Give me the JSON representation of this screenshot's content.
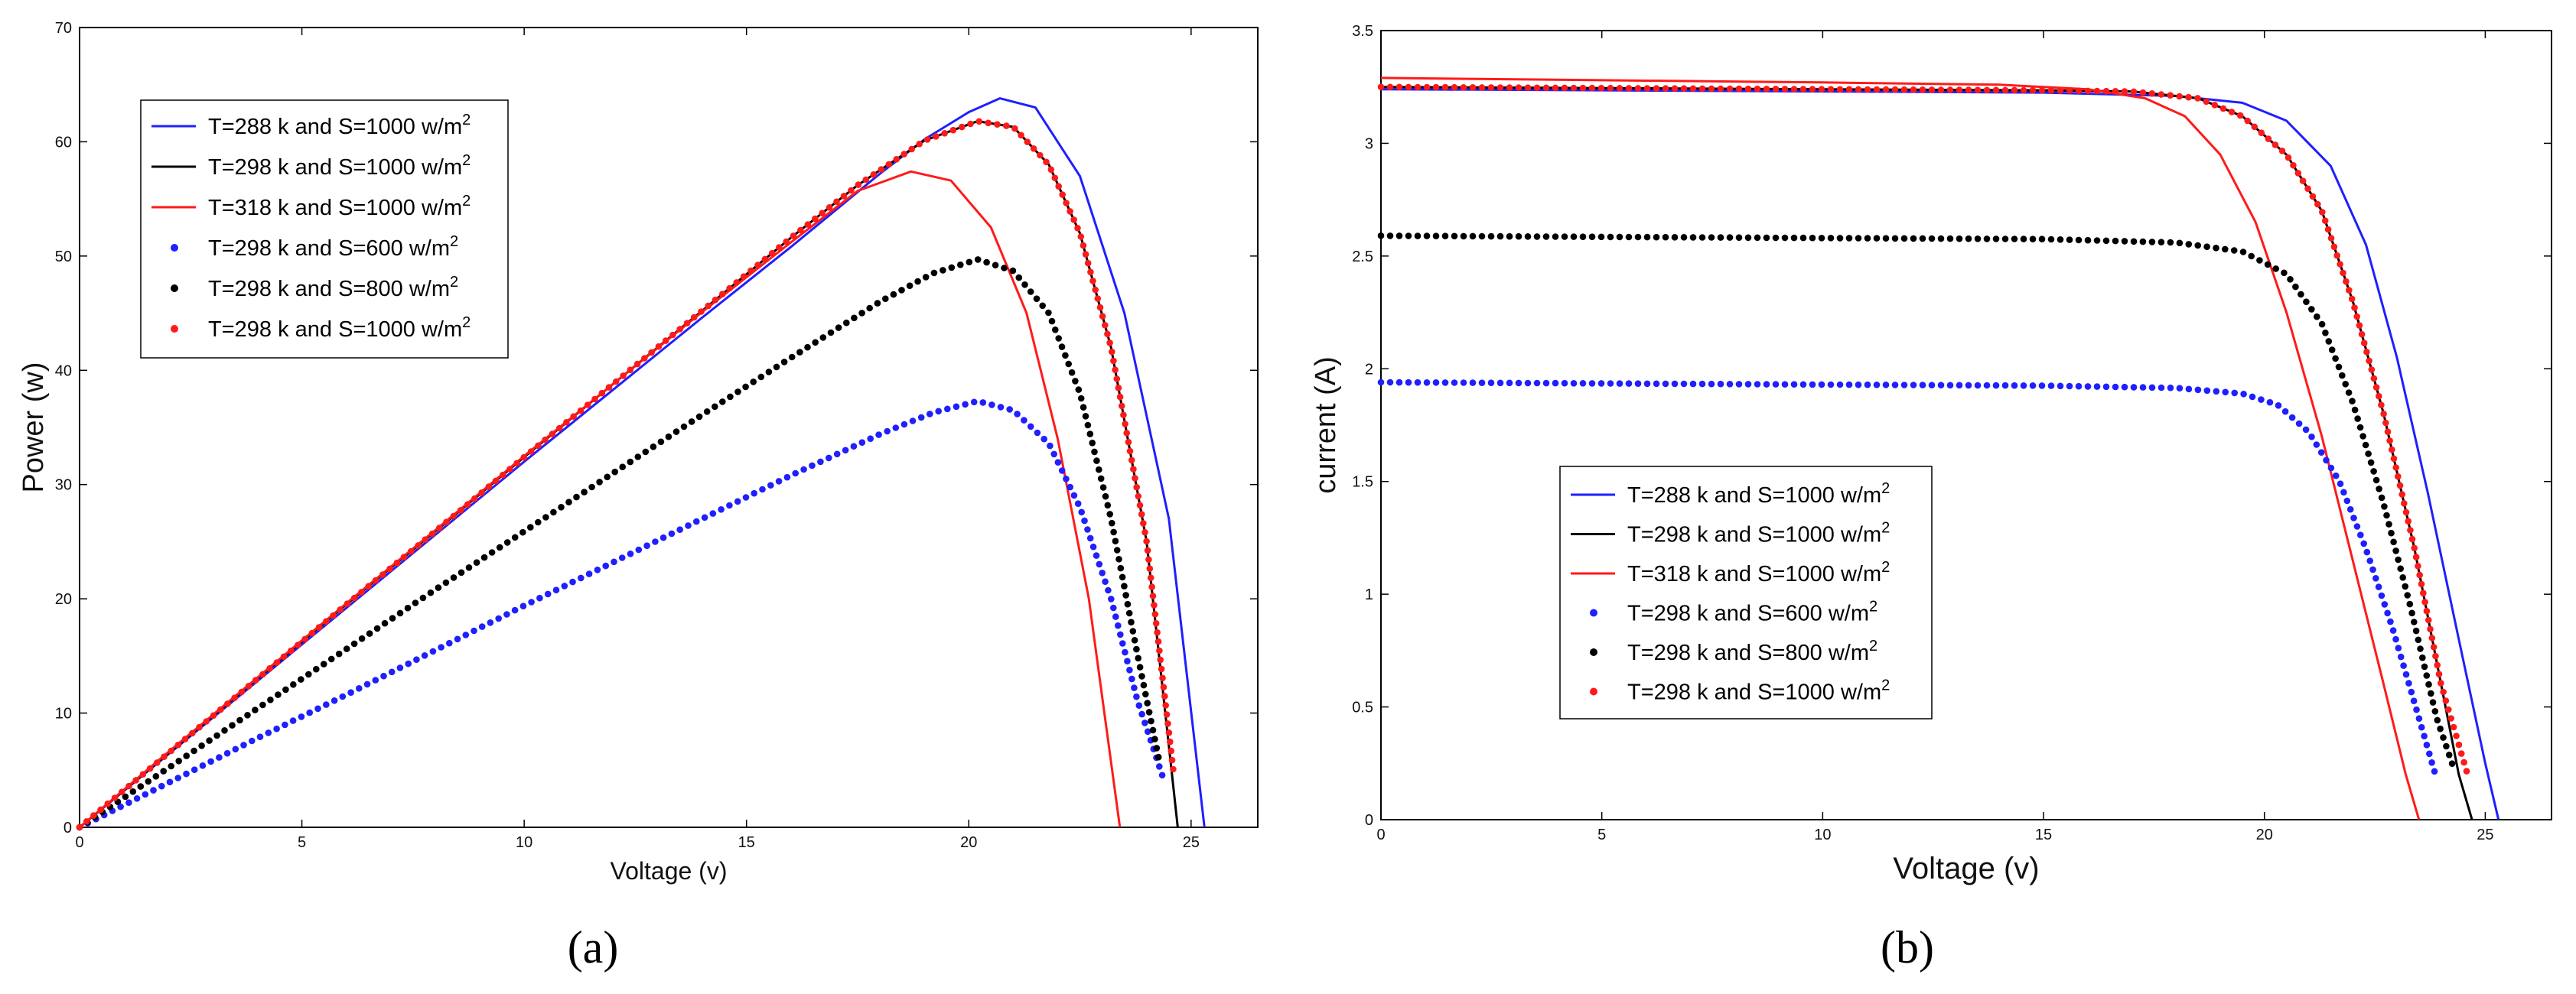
{
  "figure": {
    "panel_labels": [
      "(a)",
      "(b)"
    ]
  },
  "legend_entries": [
    {
      "text": "T=288 k and  S=1000 w/m",
      "sup": "2",
      "color": "#1f1fff",
      "style": "line"
    },
    {
      "text": "T=298 k and  S=1000 w/m",
      "sup": "2",
      "color": "#000000",
      "style": "line"
    },
    {
      "text": "T=318 k and  S=1000 w/m",
      "sup": "2",
      "color": "#ff1a1a",
      "style": "line"
    },
    {
      "text": "T=298 k and  S=600 w/m",
      "sup": "2",
      "color": "#1f1fff",
      "style": "dots"
    },
    {
      "text": "T=298 k and  S=800 w/m",
      "sup": "2",
      "color": "#000000",
      "style": "dots"
    },
    {
      "text": "T=298 k and  S=1000 w/m",
      "sup": "2",
      "color": "#ff1a1a",
      "style": "dots"
    }
  ],
  "legend_entries_b": [
    {
      "text": "T=288 k and S=1000 w/m",
      "sup": "2"
    },
    {
      "text": "T=298 k and S=1000 w/m",
      "sup": "2"
    },
    {
      "text": "T=318 k and S=1000 w/m",
      "sup": "2"
    },
    {
      "text": "T=298 k and S=600 w/m",
      "sup": "2"
    },
    {
      "text": "T=298 k and S=800 w/m",
      "sup": "2"
    },
    {
      "text": "T=298 k and S=1000 w/m",
      "sup": "2"
    }
  ],
  "chart_data": [
    {
      "type": "line",
      "title": "",
      "xlabel": "Voltage (v)",
      "ylabel": "Power (w)",
      "xlim": [
        0,
        26.5
      ],
      "ylim": [
        0,
        70
      ],
      "xticks": [
        0,
        5,
        10,
        15,
        20,
        25
      ],
      "yticks": [
        0,
        10,
        20,
        30,
        40,
        50,
        60,
        70
      ],
      "legend_position": "top-left",
      "series": [
        {
          "name": "T=288 k and S=1000 w/m2",
          "style": "line",
          "color": "#1f1fff",
          "x": [
            0,
            2,
            4,
            6,
            8,
            10,
            12,
            14,
            16,
            18,
            19,
            20,
            20.7,
            21.5,
            22.5,
            23.5,
            24.5,
            25.3
          ],
          "y": [
            0,
            6.4,
            12.8,
            19.2,
            25.6,
            32,
            38.3,
            44.6,
            50.8,
            57.2,
            60.2,
            62.6,
            63.8,
            63,
            57,
            45,
            27,
            0
          ]
        },
        {
          "name": "T=298 k and S=1000 w/m2",
          "style": "line",
          "color": "#000000",
          "x": [
            0,
            2,
            4,
            6,
            8,
            10,
            12,
            14,
            16,
            17.5,
            19,
            20.2,
            21,
            21.8,
            22.5,
            23.2,
            24,
            24.7
          ],
          "y": [
            0,
            6.5,
            13,
            19.5,
            25.9,
            32.4,
            38.8,
            45.2,
            51.6,
            56.2,
            60.1,
            61.8,
            61.3,
            58,
            52,
            42,
            25,
            0
          ]
        },
        {
          "name": "T=318 k and S=1000 w/m2",
          "style": "line",
          "color": "#ff1a1a",
          "x": [
            0,
            2,
            4,
            6,
            8,
            10,
            12,
            14,
            16,
            17.5,
            18.7,
            19.6,
            20.5,
            21.3,
            22,
            22.7,
            23.4
          ],
          "y": [
            0,
            6.6,
            13.1,
            19.6,
            26,
            32.5,
            38.8,
            45.1,
            51.2,
            55.7,
            57.4,
            56.6,
            52.5,
            45,
            34,
            20,
            0
          ]
        },
        {
          "name": "T=298 k and S=600 w/m2",
          "style": "dots",
          "color": "#1f1fff",
          "x": [
            0,
            2,
            4,
            6,
            8,
            10,
            12,
            14,
            16,
            18,
            19.2,
            20.2,
            21,
            21.8,
            22.5,
            23.2,
            23.8,
            24.4
          ],
          "y": [
            0,
            3.9,
            7.8,
            11.6,
            15.5,
            19.4,
            23.2,
            27,
            30.8,
            34.4,
            36.3,
            37.3,
            36.5,
            33.6,
            28,
            20,
            11,
            4
          ]
        },
        {
          "name": "T=298 k and S=800 w/m2",
          "style": "dots",
          "color": "#000000",
          "x": [
            0,
            2,
            4,
            6,
            8,
            10,
            12,
            14,
            16,
            18,
            19.2,
            20.2,
            21,
            21.8,
            22.5,
            23.2,
            23.8,
            24.3
          ],
          "y": [
            0,
            5.2,
            10.4,
            15.6,
            20.8,
            25.9,
            31,
            36.1,
            41.1,
            46,
            48.5,
            49.7,
            48.7,
            45,
            38,
            27,
            15,
            5.5
          ]
        },
        {
          "name": "T=298 k and S=1000 w/m2",
          "style": "dots",
          "color": "#ff1a1a",
          "x": [
            0,
            2,
            4,
            6,
            8,
            10,
            12,
            14,
            16,
            17.5,
            19,
            20.2,
            21,
            21.8,
            22.5,
            23.2,
            24,
            24.6
          ],
          "y": [
            0,
            6.5,
            13,
            19.5,
            25.9,
            32.4,
            38.8,
            45.2,
            51.6,
            56.2,
            60.1,
            61.8,
            61.3,
            58,
            52,
            42,
            25,
            5
          ]
        }
      ]
    },
    {
      "type": "line",
      "title": "",
      "xlabel": "Voltage (v)",
      "ylabel": "current (A)",
      "xlim": [
        0,
        26.5
      ],
      "ylim": [
        0,
        3.5
      ],
      "xticks": [
        0,
        5,
        10,
        15,
        20,
        25
      ],
      "yticks": [
        0,
        0.5,
        1,
        1.5,
        2,
        2.5,
        3,
        3.5
      ],
      "legend_position": "center-left",
      "series": [
        {
          "name": "T=288 k and S=1000 w/m2",
          "style": "line",
          "color": "#1f1fff",
          "x": [
            0,
            5,
            10,
            15,
            18,
            19.5,
            20.5,
            21.5,
            22.3,
            23,
            23.7,
            24.4,
            25,
            25.3
          ],
          "y": [
            3.24,
            3.235,
            3.23,
            3.225,
            3.21,
            3.18,
            3.1,
            2.9,
            2.55,
            2.05,
            1.45,
            0.8,
            0.25,
            0
          ]
        },
        {
          "name": "T=298 k and S=1000 w/m2",
          "style": "line",
          "color": "#000000",
          "x": [
            0,
            5,
            10,
            15,
            17,
            18.5,
            19.5,
            20.5,
            21.3,
            22,
            22.7,
            23.4,
            24,
            24.4,
            24.7
          ],
          "y": [
            3.25,
            3.245,
            3.24,
            3.235,
            3.23,
            3.2,
            3.12,
            2.95,
            2.7,
            2.3,
            1.8,
            1.2,
            0.6,
            0.2,
            0
          ]
        },
        {
          "name": "T=318 k and S=1000 w/m2",
          "style": "line",
          "color": "#ff1a1a",
          "x": [
            0,
            5,
            10,
            14,
            16,
            17.3,
            18.2,
            19,
            19.8,
            20.5,
            21.3,
            22,
            22.7,
            23.2,
            23.5
          ],
          "y": [
            3.29,
            3.28,
            3.27,
            3.26,
            3.24,
            3.2,
            3.12,
            2.95,
            2.65,
            2.25,
            1.7,
            1.15,
            0.6,
            0.2,
            0
          ]
        },
        {
          "name": "T=298 k and S=600 w/m2",
          "style": "dots",
          "color": "#1f1fff",
          "x": [
            0,
            5,
            10,
            15,
            18,
            19.5,
            20.3,
            21,
            21.7,
            22.3,
            22.9,
            23.5,
            23.9
          ],
          "y": [
            1.94,
            1.935,
            1.93,
            1.925,
            1.915,
            1.89,
            1.84,
            1.72,
            1.5,
            1.2,
            0.85,
            0.45,
            0.18
          ]
        },
        {
          "name": "T=298 k and S=800 w/m2",
          "style": "dots",
          "color": "#000000",
          "x": [
            0,
            5,
            10,
            15,
            18,
            19.5,
            20.5,
            21.3,
            22,
            22.7,
            23.3,
            23.9,
            24.3
          ],
          "y": [
            2.59,
            2.585,
            2.58,
            2.575,
            2.56,
            2.52,
            2.42,
            2.2,
            1.85,
            1.4,
            0.95,
            0.45,
            0.22
          ]
        },
        {
          "name": "T=298 k and S=1000 w/m2",
          "style": "dots",
          "color": "#ff1a1a",
          "x": [
            0,
            5,
            10,
            15,
            17,
            18.5,
            19.5,
            20.5,
            21.3,
            22,
            22.7,
            23.4,
            24,
            24.6
          ],
          "y": [
            3.25,
            3.245,
            3.24,
            3.235,
            3.23,
            3.2,
            3.12,
            2.95,
            2.7,
            2.3,
            1.8,
            1.2,
            0.6,
            0.2
          ]
        }
      ]
    }
  ]
}
